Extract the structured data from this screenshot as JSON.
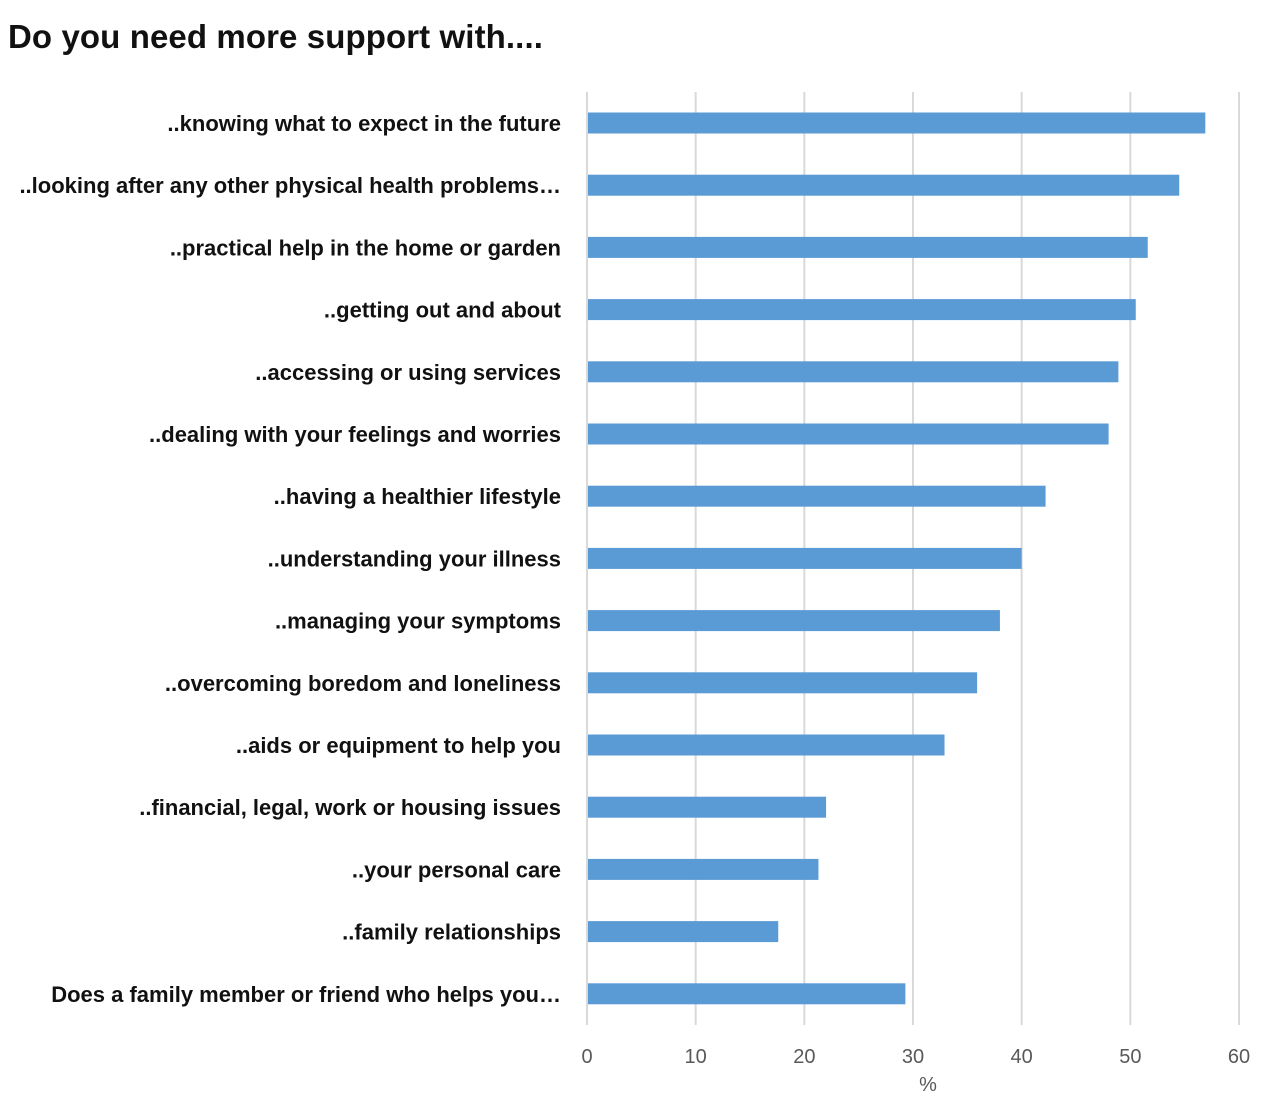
{
  "chart_data": {
    "type": "bar",
    "orientation": "horizontal",
    "title": "Do you need more support with....",
    "xlabel": "%",
    "ylabel": "",
    "xlim": [
      0,
      60
    ],
    "xticks": [
      0,
      10,
      20,
      30,
      40,
      50,
      60
    ],
    "grid": true,
    "color": "#5b9bd5",
    "categories": [
      "..knowing what to expect in the future",
      "..looking after any other physical health problems…",
      "..practical help in the home or garden",
      "..getting out and about",
      "..accessing or using services",
      "..dealing with your feelings and worries",
      "..having a healthier lifestyle",
      "..understanding your illness",
      "..managing your symptoms",
      "..overcoming boredom and loneliness",
      "..aids or equipment to help you",
      "..financial, legal, work or housing issues",
      "..your personal care",
      "..family relationships",
      "Does a family member or friend who helps you…"
    ],
    "values": [
      56.9,
      54.5,
      51.6,
      50.5,
      48.9,
      48.0,
      42.2,
      40.0,
      38.0,
      35.9,
      32.9,
      22.0,
      21.3,
      17.6,
      29.3
    ]
  }
}
